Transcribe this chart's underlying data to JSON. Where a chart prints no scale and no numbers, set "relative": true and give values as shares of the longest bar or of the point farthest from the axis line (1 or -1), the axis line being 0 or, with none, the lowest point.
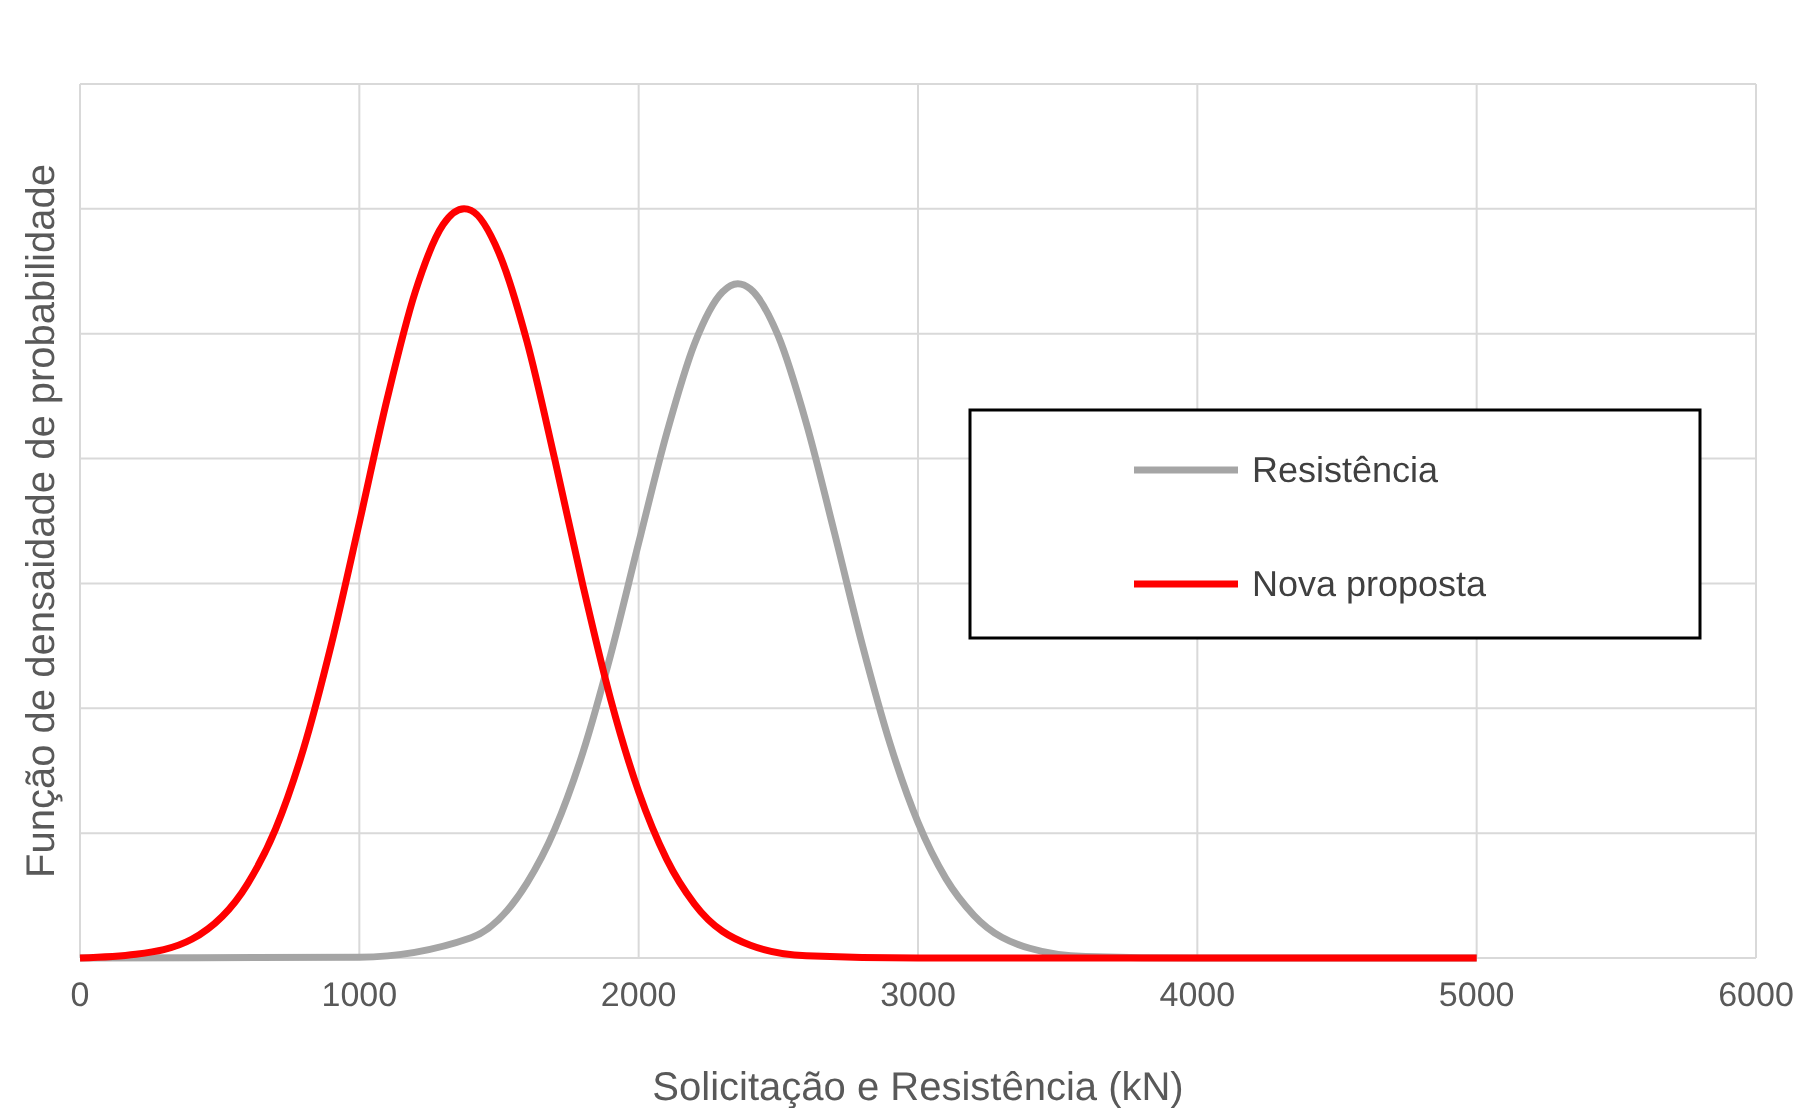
{
  "chart_data": {
    "type": "line",
    "xlabel": "Solicitação e Resistência (kN)",
    "ylabel": "Função de densaidade de probabilidade",
    "relative": true,
    "xlim": [
      0,
      6000
    ],
    "xticks": [
      0,
      1000,
      2000,
      3000,
      4000,
      5000,
      6000
    ],
    "grid": true,
    "legend": "right",
    "marker": "none",
    "line_style": "solid",
    "series": [
      {
        "name": "Resistência",
        "color": "#a5a5a5",
        "x": [
          0,
          1000,
          1400,
          1600,
          1700,
          1800,
          1900,
          2000,
          2100,
          2200,
          2300,
          2355,
          2400,
          2500,
          2600,
          2700,
          2800,
          2900,
          3000,
          3100,
          3200,
          3400,
          3600,
          4000,
          5000
        ],
        "values": [
          0,
          0.001,
          0.027,
          0.1,
          0.172,
          0.274,
          0.405,
          0.554,
          0.7,
          0.82,
          0.889,
          0.9,
          0.893,
          0.83,
          0.714,
          0.569,
          0.419,
          0.286,
          0.181,
          0.106,
          0.057,
          0.013,
          0.002,
          0,
          0
        ]
      },
      {
        "name": "Nova proposta",
        "color": "#ff0000",
        "x": [
          0,
          200,
          400,
          600,
          700,
          800,
          900,
          1000,
          1100,
          1200,
          1300,
          1375,
          1400,
          1500,
          1600,
          1700,
          1800,
          1900,
          2000,
          2100,
          2200,
          2400,
          2600,
          3000,
          5000
        ],
        "values": [
          0,
          0.005,
          0.025,
          0.099,
          0.172,
          0.279,
          0.419,
          0.581,
          0.747,
          0.889,
          0.979,
          1,
          0.998,
          0.941,
          0.823,
          0.665,
          0.498,
          0.345,
          0.222,
          0.132,
          0.072,
          0.017,
          0.003,
          0,
          0
        ]
      }
    ]
  }
}
